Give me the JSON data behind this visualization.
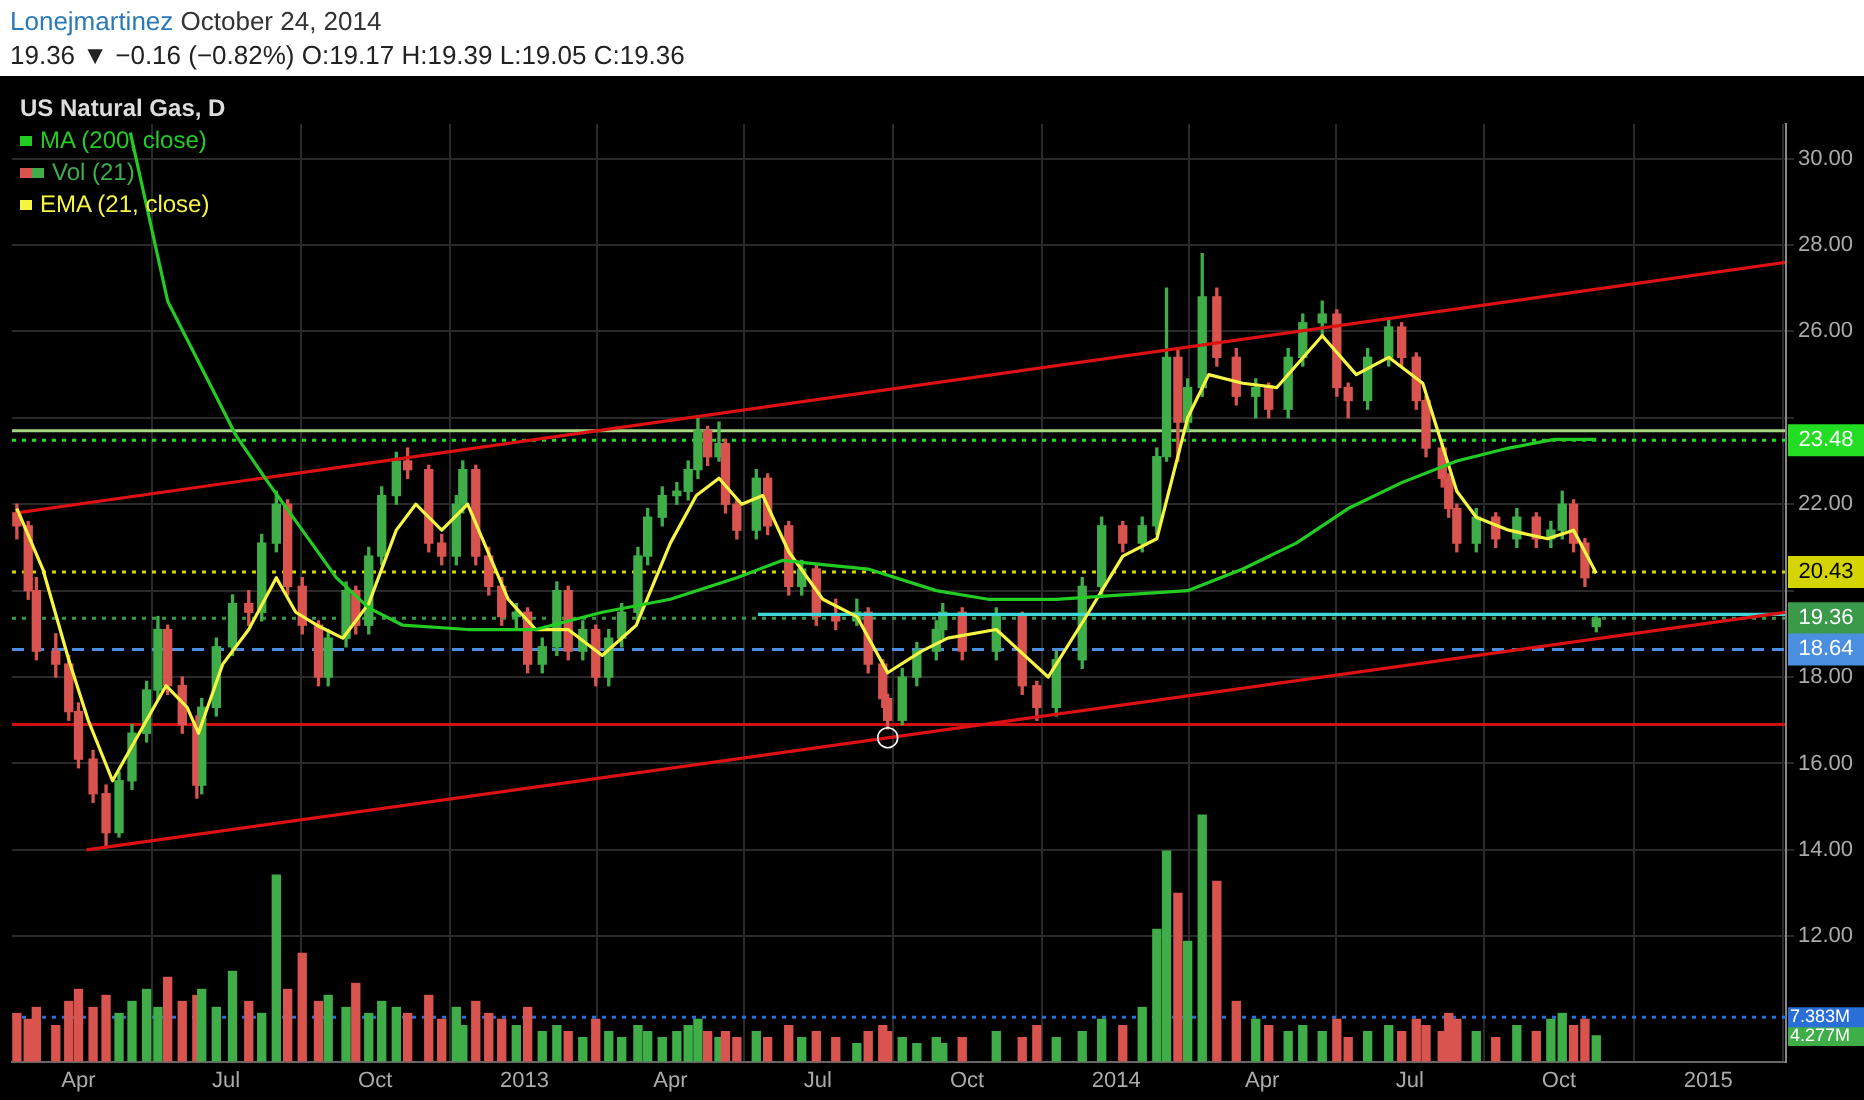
{
  "chart_data": [
    {
      "type": "candlestick",
      "title": "US Natural Gas, D",
      "subtitle": "19.36 ▼ −0.16 (−0.82%) O:19.17 H:19.39 L:19.05 C:19.36",
      "annotations": [
        "Lonejmartinez",
        "October 24, 2014",
        {
          "text": "○",
          "x": "2013-08-13",
          "y": 16.6
        }
      ],
      "x": [
        "2012-02-23",
        "2012-03-01",
        "2012-03-06",
        "2012-03-18",
        "2012-03-26",
        "2012-04-01",
        "2012-04-10",
        "2012-04-18",
        "2012-04-26",
        "2012-05-04",
        "2012-05-13",
        "2012-05-20",
        "2012-05-26",
        "2012-06-04",
        "2012-06-13",
        "2012-06-16",
        "2012-06-25",
        "2012-07-05",
        "2012-07-15",
        "2012-07-23",
        "2012-08-01",
        "2012-08-08",
        "2012-08-17",
        "2012-08-27",
        "2012-09-02",
        "2012-09-13",
        "2012-09-19",
        "2012-09-27",
        "2012-10-05",
        "2012-10-14",
        "2012-10-21",
        "2012-11-03",
        "2012-11-11",
        "2012-11-20",
        "2012-11-24",
        "2012-12-02",
        "2012-12-10",
        "2012-12-18",
        "2012-12-27",
        "2013-01-03",
        "2013-01-12",
        "2013-01-21",
        "2013-01-28",
        "2013-02-06",
        "2013-02-14",
        "2013-02-22",
        "2013-03-02",
        "2013-03-12",
        "2013-03-18",
        "2013-03-27",
        "2013-04-05",
        "2013-04-12",
        "2013-04-18",
        "2013-04-24",
        "2013-05-01",
        "2013-05-05",
        "2013-05-12",
        "2013-05-24",
        "2013-05-31",
        "2013-06-13",
        "2013-06-21",
        "2013-06-30",
        "2013-07-12",
        "2013-07-25",
        "2013-08-01",
        "2013-08-10",
        "2013-08-13",
        "2013-08-22",
        "2013-08-31",
        "2013-09-12",
        "2013-09-16",
        "2013-09-28",
        "2013-10-19",
        "2013-11-04",
        "2013-11-13",
        "2013-11-25",
        "2013-12-11",
        "2013-12-23",
        "2014-01-05",
        "2014-01-17",
        "2014-01-26",
        "2014-02-01",
        "2014-02-08",
        "2014-02-14",
        "2014-02-23",
        "2014-03-04",
        "2014-03-16",
        "2014-03-28",
        "2014-04-05",
        "2014-04-17",
        "2014-04-26",
        "2014-05-08",
        "2014-05-17",
        "2014-05-24",
        "2014-06-05",
        "2014-06-18",
        "2014-06-26",
        "2014-07-05",
        "2014-07-11",
        "2014-07-21",
        "2014-07-25",
        "2014-07-30",
        "2014-08-11",
        "2014-08-23",
        "2014-09-05",
        "2014-09-17",
        "2014-09-26",
        "2014-10-03",
        "2014-10-10",
        "2014-10-17",
        "2014-10-24"
      ],
      "ohlc": [
        [
          21.8,
          22.0,
          21.2,
          21.5
        ],
        [
          21.5,
          21.6,
          19.8,
          20.0
        ],
        [
          20.0,
          20.3,
          18.4,
          18.6
        ],
        [
          18.6,
          19.0,
          18.0,
          18.3
        ],
        [
          18.3,
          18.5,
          17.0,
          17.2
        ],
        [
          17.2,
          17.4,
          15.9,
          16.1
        ],
        [
          16.1,
          16.3,
          15.1,
          15.3
        ],
        [
          15.3,
          15.5,
          14.1,
          14.4
        ],
        [
          14.4,
          15.8,
          14.3,
          15.6
        ],
        [
          15.6,
          16.9,
          15.4,
          16.7
        ],
        [
          16.7,
          17.9,
          16.5,
          17.7
        ],
        [
          17.7,
          19.4,
          17.5,
          19.1
        ],
        [
          19.1,
          19.2,
          17.6,
          17.8
        ],
        [
          17.8,
          18.0,
          16.7,
          16.9
        ],
        [
          16.9,
          17.1,
          15.2,
          15.5
        ],
        [
          15.5,
          17.5,
          15.3,
          17.3
        ],
        [
          17.3,
          18.9,
          17.1,
          18.7
        ],
        [
          18.7,
          19.9,
          18.5,
          19.7
        ],
        [
          19.7,
          20.0,
          19.2,
          19.5
        ],
        [
          19.5,
          21.3,
          19.3,
          21.1
        ],
        [
          21.1,
          22.3,
          20.9,
          22.0
        ],
        [
          22.0,
          22.1,
          19.9,
          20.1
        ],
        [
          20.1,
          20.3,
          19.0,
          19.2
        ],
        [
          19.2,
          19.3,
          17.8,
          18.0
        ],
        [
          18.0,
          19.1,
          17.8,
          18.9
        ],
        [
          18.9,
          20.2,
          18.7,
          20.0
        ],
        [
          20.0,
          20.1,
          19.0,
          19.2
        ],
        [
          19.2,
          21.0,
          19.0,
          20.8
        ],
        [
          20.8,
          22.4,
          20.6,
          22.2
        ],
        [
          22.2,
          23.2,
          22.0,
          23.0
        ],
        [
          23.0,
          23.3,
          22.6,
          22.8
        ],
        [
          22.8,
          22.9,
          20.9,
          21.1
        ],
        [
          21.1,
          21.3,
          20.6,
          20.8
        ],
        [
          20.8,
          22.2,
          20.6,
          22.0
        ],
        [
          22.0,
          23.0,
          21.8,
          22.8
        ],
        [
          22.8,
          22.9,
          20.6,
          20.8
        ],
        [
          20.8,
          21.0,
          19.9,
          20.1
        ],
        [
          20.1,
          20.3,
          19.2,
          19.4
        ],
        [
          19.4,
          19.7,
          19.1,
          19.5
        ],
        [
          19.5,
          19.6,
          18.1,
          18.3
        ],
        [
          18.3,
          18.9,
          18.1,
          18.7
        ],
        [
          18.7,
          20.2,
          18.5,
          20.0
        ],
        [
          20.0,
          20.1,
          18.4,
          18.6
        ],
        [
          18.6,
          19.3,
          18.4,
          19.1
        ],
        [
          19.1,
          19.2,
          17.8,
          18.0
        ],
        [
          18.0,
          19.1,
          17.8,
          18.9
        ],
        [
          18.9,
          19.7,
          18.7,
          19.5
        ],
        [
          19.5,
          21.0,
          19.3,
          20.8
        ],
        [
          20.8,
          21.9,
          20.6,
          21.7
        ],
        [
          21.7,
          22.4,
          21.5,
          22.2
        ],
        [
          22.2,
          22.5,
          22.0,
          22.3
        ],
        [
          22.3,
          23.0,
          22.1,
          22.8
        ],
        [
          22.8,
          24.0,
          22.6,
          23.7
        ],
        [
          23.7,
          23.8,
          22.9,
          23.1
        ],
        [
          23.1,
          23.9,
          23.0,
          23.4
        ],
        [
          23.4,
          23.5,
          21.8,
          22.0
        ],
        [
          22.0,
          22.1,
          21.2,
          21.4
        ],
        [
          21.4,
          22.8,
          21.2,
          22.6
        ],
        [
          22.6,
          22.7,
          21.3,
          21.5
        ],
        [
          21.5,
          21.6,
          19.9,
          20.1
        ],
        [
          20.1,
          20.7,
          19.9,
          20.5
        ],
        [
          20.5,
          20.6,
          19.2,
          19.4
        ],
        [
          19.4,
          19.8,
          19.1,
          19.3
        ],
        [
          19.3,
          19.8,
          19.2,
          19.5
        ],
        [
          19.5,
          19.6,
          18.1,
          18.3
        ],
        [
          18.3,
          18.4,
          17.3,
          17.5
        ],
        [
          17.5,
          17.6,
          16.8,
          17.0
        ],
        [
          17.0,
          18.2,
          16.9,
          18.0
        ],
        [
          18.0,
          18.8,
          17.8,
          18.6
        ],
        [
          18.6,
          19.3,
          18.4,
          19.1
        ],
        [
          19.1,
          19.7,
          18.9,
          19.5
        ],
        [
          19.5,
          19.6,
          18.4,
          18.6
        ],
        [
          18.6,
          19.6,
          18.4,
          19.4
        ],
        [
          19.4,
          19.5,
          17.6,
          17.8
        ],
        [
          17.8,
          17.9,
          17.0,
          17.3
        ],
        [
          17.3,
          18.6,
          17.1,
          18.4
        ],
        [
          18.4,
          20.3,
          18.2,
          20.1
        ],
        [
          20.1,
          21.7,
          19.9,
          21.5
        ],
        [
          21.5,
          21.6,
          20.9,
          21.1
        ],
        [
          21.1,
          21.7,
          20.9,
          21.5
        ],
        [
          21.5,
          23.3,
          21.3,
          23.1
        ],
        [
          23.1,
          27.0,
          23.0,
          25.4
        ],
        [
          25.4,
          25.6,
          23.0,
          23.9
        ],
        [
          23.9,
          24.9,
          23.7,
          24.7
        ],
        [
          24.7,
          27.8,
          24.5,
          26.8
        ],
        [
          26.8,
          27.0,
          25.2,
          25.4
        ],
        [
          25.4,
          25.6,
          24.3,
          24.5
        ],
        [
          24.5,
          24.9,
          24.0,
          24.7
        ],
        [
          24.7,
          24.8,
          24.0,
          24.2
        ],
        [
          24.2,
          25.6,
          24.0,
          25.4
        ],
        [
          25.4,
          26.4,
          25.2,
          26.2
        ],
        [
          26.2,
          26.7,
          25.9,
          26.4
        ],
        [
          26.4,
          26.5,
          24.5,
          24.7
        ],
        [
          24.7,
          24.8,
          24.0,
          24.4
        ],
        [
          24.4,
          25.6,
          24.2,
          25.4
        ],
        [
          25.4,
          26.3,
          25.2,
          26.1
        ],
        [
          26.1,
          26.2,
          25.2,
          25.4
        ],
        [
          25.4,
          25.5,
          24.2,
          24.4
        ],
        [
          24.4,
          24.5,
          23.1,
          23.3
        ],
        [
          23.3,
          23.4,
          22.4,
          22.6
        ],
        [
          22.6,
          22.7,
          21.7,
          21.9
        ],
        [
          21.9,
          22.0,
          20.9,
          21.1
        ],
        [
          21.1,
          21.9,
          20.9,
          21.7
        ],
        [
          21.7,
          21.8,
          21.0,
          21.2
        ],
        [
          21.2,
          21.9,
          21.0,
          21.7
        ],
        [
          21.7,
          21.8,
          21.0,
          21.2
        ],
        [
          21.2,
          21.6,
          21.0,
          21.4
        ],
        [
          21.4,
          22.3,
          21.2,
          22.0
        ],
        [
          22.0,
          22.1,
          20.9,
          21.1
        ],
        [
          21.1,
          21.2,
          20.1,
          20.3
        ],
        [
          19.17,
          19.39,
          19.05,
          19.36
        ]
      ],
      "colors": [
        "#d9534f",
        "#d9534f",
        "#d9534f",
        "#d9534f",
        "#d9534f",
        "#d9534f",
        "#d9534f",
        "#d9534f",
        "#3fae49",
        "#3fae49",
        "#3fae49",
        "#3fae49",
        "#d9534f",
        "#d9534f",
        "#d9534f",
        "#3fae49",
        "#3fae49",
        "#3fae49",
        "#d9534f",
        "#3fae49",
        "#3fae49",
        "#d9534f",
        "#d9534f",
        "#d9534f",
        "#3fae49",
        "#3fae49",
        "#d9534f",
        "#3fae49",
        "#3fae49",
        "#3fae49",
        "#d9534f",
        "#d9534f",
        "#d9534f",
        "#3fae49",
        "#3fae49",
        "#d9534f",
        "#d9534f",
        "#d9534f",
        "#3fae49",
        "#d9534f",
        "#3fae49",
        "#3fae49",
        "#d9534f",
        "#3fae49",
        "#d9534f",
        "#3fae49",
        "#3fae49",
        "#3fae49",
        "#3fae49",
        "#3fae49",
        "#3fae49",
        "#3fae49",
        "#3fae49",
        "#d9534f",
        "#3fae49",
        "#d9534f",
        "#d9534f",
        "#3fae49",
        "#d9534f",
        "#d9534f",
        "#3fae49",
        "#d9534f",
        "#d9534f",
        "#3fae49",
        "#d9534f",
        "#d9534f",
        "#d9534f",
        "#3fae49",
        "#3fae49",
        "#3fae49",
        "#3fae49",
        "#d9534f",
        "#3fae49",
        "#d9534f",
        "#d9534f",
        "#3fae49",
        "#3fae49",
        "#3fae49",
        "#d9534f",
        "#3fae49",
        "#3fae49",
        "#3fae49",
        "#d9534f",
        "#3fae49",
        "#3fae49",
        "#d9534f",
        "#d9534f",
        "#3fae49",
        "#d9534f",
        "#3fae49",
        "#3fae49",
        "#3fae49",
        "#d9534f",
        "#d9534f",
        "#3fae49",
        "#3fae49",
        "#d9534f",
        "#d9534f",
        "#d9534f",
        "#d9534f",
        "#d9534f",
        "#d9534f",
        "#3fae49",
        "#d9534f",
        "#3fae49",
        "#d9534f",
        "#3fae49",
        "#3fae49",
        "#d9534f",
        "#d9534f",
        "#3fae49"
      ],
      "series": [
        {
          "name": "MA (200, close)",
          "type": "line",
          "color": "#22cc22",
          "x": [
            "2012-05-03",
            "2012-05-26",
            "2012-07-07",
            "2012-07-27",
            "2012-08-17",
            "2012-09-07",
            "2012-09-27",
            "2012-10-18",
            "2012-11-27",
            "2013-01-08",
            "2013-02-18",
            "2013-04-01",
            "2013-05-12",
            "2013-06-09",
            "2013-07-04",
            "2013-08-01",
            "2013-09-12",
            "2013-10-14",
            "2013-11-25",
            "2014-01-05",
            "2014-02-14",
            "2014-03-20",
            "2014-04-22",
            "2014-05-24",
            "2014-06-26",
            "2014-07-30",
            "2014-08-31",
            "2014-09-28",
            "2014-10-24"
          ],
          "values": [
            30.6,
            26.7,
            23.6,
            22.5,
            21.4,
            20.3,
            19.6,
            19.2,
            19.1,
            19.1,
            19.5,
            19.8,
            20.3,
            20.7,
            20.6,
            20.5,
            20.0,
            19.8,
            19.8,
            19.9,
            20.0,
            20.5,
            21.1,
            21.9,
            22.5,
            23.0,
            23.3,
            23.5,
            23.5
          ]
        },
        {
          "name": "EMA (21, close)",
          "type": "line",
          "color": "#f5f542",
          "x": [
            "2012-02-23",
            "2012-03-10",
            "2012-03-26",
            "2012-04-07",
            "2012-04-22",
            "2012-05-07",
            "2012-05-25",
            "2012-06-07",
            "2012-06-14",
            "2012-06-29",
            "2012-07-15",
            "2012-08-01",
            "2012-08-13",
            "2012-08-26",
            "2012-09-11",
            "2012-09-27",
            "2012-10-14",
            "2012-10-26",
            "2012-11-11",
            "2012-11-27",
            "2012-12-22",
            "2013-01-08",
            "2013-01-28",
            "2013-02-18",
            "2013-03-11",
            "2013-04-01",
            "2013-04-17",
            "2013-05-01",
            "2013-05-15",
            "2013-05-28",
            "2013-06-13",
            "2013-07-04",
            "2013-07-25",
            "2013-08-13",
            "2013-09-03",
            "2013-09-19",
            "2013-10-19",
            "2013-11-20",
            "2013-12-15",
            "2014-01-05",
            "2014-01-26",
            "2014-02-14",
            "2014-02-27",
            "2014-03-20",
            "2014-04-10",
            "2014-05-08",
            "2014-05-29",
            "2014-06-18",
            "2014-07-09",
            "2014-07-30",
            "2014-08-11",
            "2014-08-31",
            "2014-09-24",
            "2014-10-10",
            "2014-10-24"
          ],
          "values": [
            21.9,
            20.5,
            18.4,
            17.0,
            15.6,
            16.6,
            17.8,
            17.3,
            16.7,
            18.3,
            19.1,
            20.3,
            19.5,
            19.2,
            18.9,
            19.7,
            21.4,
            22.0,
            21.4,
            22.0,
            19.8,
            19.1,
            19.1,
            18.5,
            19.2,
            21.1,
            22.2,
            22.6,
            22.0,
            22.2,
            20.9,
            19.8,
            19.4,
            18.1,
            18.6,
            18.9,
            19.1,
            18.0,
            19.5,
            20.8,
            21.2,
            24.0,
            25.0,
            24.8,
            24.7,
            25.9,
            25.0,
            25.4,
            24.8,
            22.3,
            21.7,
            21.4,
            21.2,
            21.4,
            20.4
          ]
        },
        {
          "type": "line",
          "color": "#dd1111",
          "x": [
            "2012-02-23",
            "2015-02-18"
          ],
          "values": [
            21.8,
            27.6
          ]
        },
        {
          "type": "line",
          "color": "#dd1111",
          "x": [
            "2012-04-06",
            "2015-02-18"
          ],
          "values": [
            14.0,
            19.5
          ]
        },
        {
          "type": "line",
          "color": "#3fd8d8",
          "x": [
            "2013-05-25",
            "2015-02-18"
          ],
          "values": [
            19.45,
            19.45
          ]
        }
      ],
      "xlim": [
        "2012-02-20",
        "2015-02-18"
      ],
      "xticks": [
        {
          "value": "2012-04",
          "label": "Apr"
        },
        {
          "value": "2012-07",
          "label": "Jul"
        },
        {
          "value": "2012-10",
          "label": "Oct"
        },
        {
          "value": "2013",
          "label": "2013"
        },
        {
          "value": "2013-04",
          "label": "Apr"
        },
        {
          "value": "2013-07",
          "label": "Jul"
        },
        {
          "value": "2013-10",
          "label": "Oct"
        },
        {
          "value": "2014",
          "label": "2014"
        },
        {
          "value": "2014-04",
          "label": "Apr"
        },
        {
          "value": "2014-07",
          "label": "Jul"
        },
        {
          "value": "2014-10",
          "label": "Oct"
        },
        {
          "value": "2015",
          "label": "2015"
        }
      ],
      "ylim": [
        9.1,
        30.8
      ],
      "yticks": [
        {
          "value": 12,
          "label": "12.00"
        },
        {
          "value": 14,
          "label": "14.00"
        },
        {
          "value": 16,
          "label": "16.00"
        },
        {
          "value": 18,
          "label": "18.00"
        },
        {
          "value": 20,
          "label": null
        },
        {
          "value": 22,
          "label": "22.00"
        },
        {
          "value": 24,
          "label": null
        },
        {
          "value": 26,
          "label": "26.00"
        },
        {
          "value": 28,
          "label": "28.00"
        },
        {
          "value": 30,
          "label": "30.00"
        }
      ],
      "ref_lines": [
        {
          "axis": "y",
          "value": 23.7,
          "color": "#a6d785",
          "line_style": "solid"
        },
        {
          "axis": "y",
          "value": 23.48,
          "label": "23.48",
          "color": "#22dd22",
          "line_style": "dotted"
        },
        {
          "axis": "y",
          "value": 20.43,
          "label": "20.43",
          "color": "#d4d400",
          "line_style": "dotted"
        },
        {
          "axis": "y",
          "value": 19.36,
          "label": "19.36",
          "color": "#3a9a4a",
          "line_style": "dotted"
        },
        {
          "axis": "y",
          "value": 18.64,
          "label": "18.64",
          "color": "#4a8fe0",
          "line_style": "dashed"
        },
        {
          "axis": "y",
          "value": 16.9,
          "color": "#d01010",
          "line_style": "solid"
        }
      ],
      "grid": true,
      "legend": "top left",
      "marker": "none"
    },
    {
      "type": "bar",
      "tick_labels": "y",
      "ylim": [
        0,
        156
      ],
      "yticks": [
        {
          "value": 4.277,
          "label": "4.277M"
        },
        {
          "value": 7.383,
          "label": "7.383M"
        }
      ],
      "x": [
        "2012-02-23",
        "2012-03-01",
        "2012-03-06",
        "2012-03-18",
        "2012-03-26",
        "2012-04-01",
        "2012-04-10",
        "2012-04-18",
        "2012-04-26",
        "2012-05-04",
        "2012-05-13",
        "2012-05-20",
        "2012-05-26",
        "2012-06-04",
        "2012-06-13",
        "2012-06-16",
        "2012-06-25",
        "2012-07-05",
        "2012-07-15",
        "2012-07-23",
        "2012-08-01",
        "2012-08-08",
        "2012-08-17",
        "2012-08-27",
        "2012-09-02",
        "2012-09-13",
        "2012-09-19",
        "2012-09-27",
        "2012-10-05",
        "2012-10-14",
        "2012-10-21",
        "2012-11-03",
        "2012-11-11",
        "2012-11-20",
        "2012-11-24",
        "2012-12-02",
        "2012-12-10",
        "2012-12-18",
        "2012-12-27",
        "2013-01-03",
        "2013-01-12",
        "2013-01-21",
        "2013-01-28",
        "2013-02-06",
        "2013-02-14",
        "2013-02-22",
        "2013-03-02",
        "2013-03-12",
        "2013-03-18",
        "2013-03-27",
        "2013-04-05",
        "2013-04-12",
        "2013-04-18",
        "2013-04-24",
        "2013-05-01",
        "2013-05-05",
        "2013-05-12",
        "2013-05-24",
        "2013-05-31",
        "2013-06-13",
        "2013-06-21",
        "2013-06-30",
        "2013-07-12",
        "2013-07-25",
        "2013-08-01",
        "2013-08-10",
        "2013-08-13",
        "2013-08-22",
        "2013-08-31",
        "2013-09-12",
        "2013-09-16",
        "2013-09-28",
        "2013-10-19",
        "2013-11-04",
        "2013-11-13",
        "2013-11-25",
        "2013-12-11",
        "2013-12-23",
        "2014-01-05",
        "2014-01-17",
        "2014-01-26",
        "2014-02-01",
        "2014-02-08",
        "2014-02-14",
        "2014-02-23",
        "2014-03-04",
        "2014-03-16",
        "2014-03-28",
        "2014-04-05",
        "2014-04-17",
        "2014-04-26",
        "2014-05-08",
        "2014-05-17",
        "2014-05-24",
        "2014-06-05",
        "2014-06-18",
        "2014-06-26",
        "2014-07-05",
        "2014-07-11",
        "2014-07-21",
        "2014-07-25",
        "2014-07-30",
        "2014-08-11",
        "2014-08-23",
        "2014-09-05",
        "2014-09-17",
        "2014-09-26",
        "2014-10-03",
        "2014-10-10",
        "2014-10-17",
        "2014-10-24"
      ],
      "xlim": [
        "2012-02-20",
        "2015-02-18"
      ],
      "series": [
        {
          "name": "Vol (21)",
          "colors": [
            "#d9534f",
            "#d9534f",
            "#d9534f",
            "#d9534f",
            "#d9534f",
            "#d9534f",
            "#d9534f",
            "#d9534f",
            "#3fae49",
            "#3fae49",
            "#3fae49",
            "#3fae49",
            "#d9534f",
            "#d9534f",
            "#d9534f",
            "#3fae49",
            "#3fae49",
            "#3fae49",
            "#d9534f",
            "#3fae49",
            "#3fae49",
            "#d9534f",
            "#d9534f",
            "#d9534f",
            "#3fae49",
            "#3fae49",
            "#d9534f",
            "#3fae49",
            "#3fae49",
            "#3fae49",
            "#d9534f",
            "#d9534f",
            "#d9534f",
            "#3fae49",
            "#3fae49",
            "#d9534f",
            "#d9534f",
            "#d9534f",
            "#3fae49",
            "#d9534f",
            "#3fae49",
            "#3fae49",
            "#d9534f",
            "#3fae49",
            "#d9534f",
            "#3fae49",
            "#3fae49",
            "#3fae49",
            "#3fae49",
            "#3fae49",
            "#3fae49",
            "#3fae49",
            "#3fae49",
            "#d9534f",
            "#3fae49",
            "#d9534f",
            "#d9534f",
            "#3fae49",
            "#d9534f",
            "#d9534f",
            "#3fae49",
            "#d9534f",
            "#d9534f",
            "#3fae49",
            "#d9534f",
            "#d9534f",
            "#d9534f",
            "#3fae49",
            "#3fae49",
            "#3fae49",
            "#3fae49",
            "#d9534f",
            "#3fae49",
            "#d9534f",
            "#d9534f",
            "#3fae49",
            "#3fae49",
            "#3fae49",
            "#d9534f",
            "#3fae49",
            "#3fae49",
            "#3fae49",
            "#d9534f",
            "#3fae49",
            "#3fae49",
            "#d9534f",
            "#d9534f",
            "#3fae49",
            "#d9534f",
            "#3fae49",
            "#3fae49",
            "#3fae49",
            "#d9534f",
            "#d9534f",
            "#3fae49",
            "#3fae49",
            "#d9534f",
            "#d9534f",
            "#d9534f",
            "#d9534f",
            "#d9534f",
            "#d9534f",
            "#3fae49",
            "#d9534f",
            "#3fae49",
            "#d9534f",
            "#3fae49",
            "#3fae49",
            "#d9534f",
            "#d9534f",
            "#3fae49"
          ],
          "values": [
            8,
            7,
            9,
            6,
            10,
            12,
            9,
            11,
            8,
            10,
            12,
            9,
            14,
            10,
            11,
            12,
            9,
            15,
            10,
            8,
            31,
            12,
            18,
            10,
            11,
            9,
            13,
            8,
            10,
            9,
            8,
            11,
            7,
            9,
            6,
            10,
            8,
            7,
            6,
            9,
            5,
            6,
            5,
            4,
            7,
            5,
            4,
            6,
            5,
            4,
            5,
            6,
            7,
            5,
            4,
            5,
            4,
            5,
            4,
            6,
            4,
            5,
            4,
            3,
            5,
            6,
            5,
            4,
            3,
            4,
            3,
            4,
            5,
            4,
            6,
            4,
            5,
            7,
            6,
            9,
            22,
            35,
            28,
            20,
            41,
            30,
            10,
            7,
            6,
            5,
            6,
            5,
            7,
            4,
            5,
            6,
            5,
            7,
            6,
            5,
            8,
            7,
            5,
            4,
            6,
            5,
            7,
            8,
            6,
            7,
            4.277
          ]
        }
      ],
      "ref_lines": [
        {
          "axis": "y",
          "value": 7.383,
          "color": "#2a6fd8",
          "line_style": "dotted"
        }
      ]
    }
  ]
}
